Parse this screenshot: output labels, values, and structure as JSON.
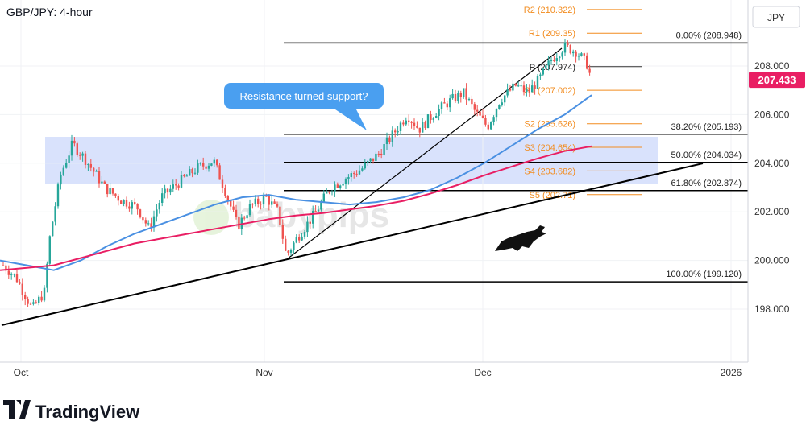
{
  "chart_data": {
    "type": "candlestick",
    "title": "GBP/JPY: 4-hour",
    "currency": "JPY",
    "last_price": "207.433",
    "ylim": [
      196.2,
      210.8
    ],
    "y_ticks": [
      "198.000",
      "200.000",
      "202.000",
      "204.000",
      "206.000",
      "208.000"
    ],
    "x_labels": [
      "Oct",
      "Nov",
      "Dec",
      "2026"
    ],
    "pivot_levels": [
      {
        "label": "R2 (210.322)",
        "value": 210.322
      },
      {
        "label": "R1 (209.35)",
        "value": 209.35
      },
      {
        "label": "P (207.974)",
        "value": 207.974
      },
      {
        "label": "S1 (207.002)",
        "value": 207.002
      },
      {
        "label": "S2 (205.626)",
        "value": 205.626
      },
      {
        "label": "S3 (204.654)",
        "value": 204.654
      },
      {
        "label": "S4 (203.682)",
        "value": 203.682
      },
      {
        "label": "S5 (202.71)",
        "value": 202.71
      }
    ],
    "fib_levels": [
      {
        "label": "0.00% (208.948)",
        "value": 208.948
      },
      {
        "label": "38.20% (205.193)",
        "value": 205.193
      },
      {
        "label": "50.00% (204.034)",
        "value": 204.034
      },
      {
        "label": "61.80% (202.874)",
        "value": 202.874
      },
      {
        "label": "100.00% (199.120)",
        "value": 199.12
      }
    ],
    "support_zone": [
      203.15,
      205.1
    ],
    "annotation": "Resistance turned support?",
    "series": [
      {
        "name": "",
        "color": "#4a90e2",
        "values": [
          200.0,
          199.8,
          199.6,
          200.0,
          200.6,
          201.1,
          201.5,
          201.9,
          202.3,
          202.6,
          202.7,
          202.5,
          202.4,
          202.3,
          202.4,
          202.6,
          202.9,
          203.4,
          204.0,
          204.7,
          205.4,
          206.0,
          206.8
        ]
      },
      {
        "name": "",
        "color": "#e91e63",
        "values": [
          199.6,
          199.7,
          199.8,
          200.1,
          200.4,
          200.7,
          200.9,
          201.1,
          201.3,
          201.5,
          201.7,
          201.85,
          201.95,
          202.1,
          202.25,
          202.45,
          202.75,
          203.1,
          203.5,
          203.85,
          204.2,
          204.5,
          204.7
        ]
      }
    ],
    "colors": {
      "up": "#26a69a",
      "down": "#ef5350",
      "zone": "#c9d6fb",
      "pivot": "#f28c1f",
      "annotation": "#4a9ff0"
    }
  },
  "watermark": "babypips",
  "branding": "TradingView"
}
